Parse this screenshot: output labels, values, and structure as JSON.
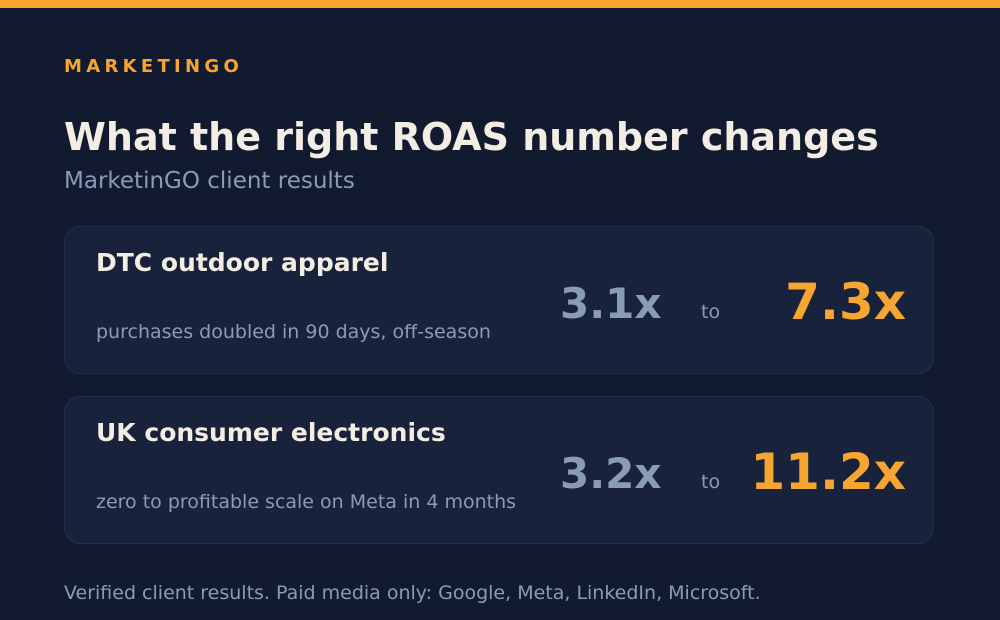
{
  "colors": {
    "background": "#111a2e",
    "card": "#18233b",
    "accent": "#f7a531",
    "title": "#f3ede3",
    "muted": "#8a9bb8"
  },
  "brand": "MARKETINGO",
  "title": "What the right ROAS number changes",
  "subtitle": "MarketinGO client results",
  "cases": [
    {
      "name": "DTC outdoor apparel",
      "description": "purchases doubled in 90 days, off-season",
      "from": "3.1x",
      "to_label": "to",
      "to": "7.3x"
    },
    {
      "name": "UK consumer electronics",
      "description": "zero to profitable scale on Meta in 4 months",
      "from": "3.2x",
      "to_label": "to",
      "to": "11.2x"
    }
  ],
  "footer": "Verified client results. Paid media only: Google, Meta, LinkedIn, Microsoft."
}
